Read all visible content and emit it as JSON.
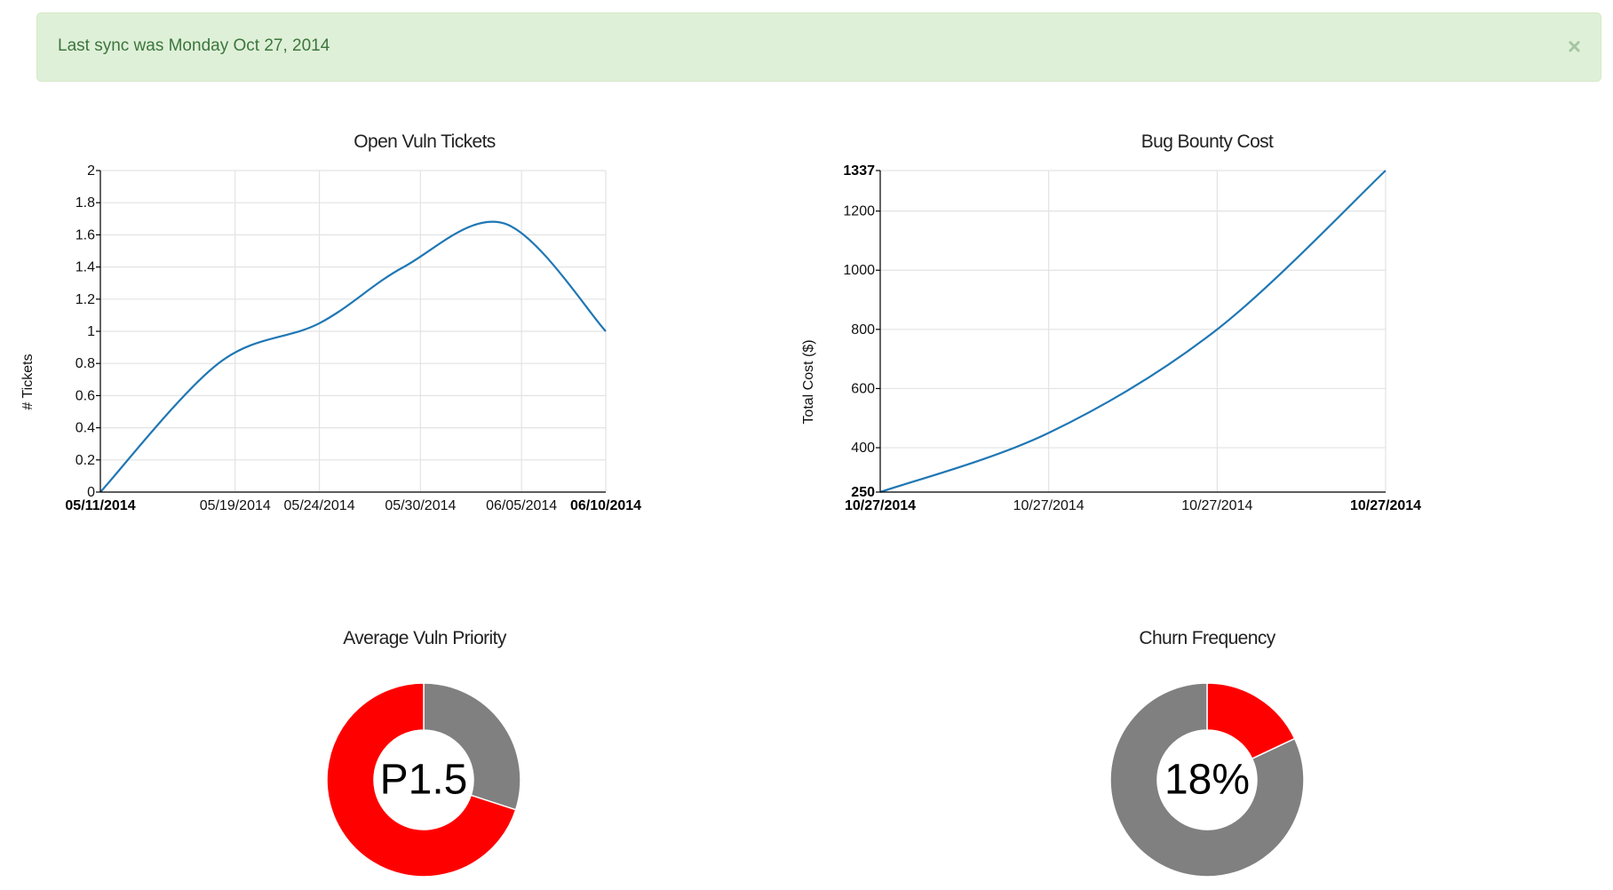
{
  "alert": {
    "message": "Last sync was Monday Oct 27, 2014",
    "close": "×"
  },
  "colors": {
    "line": "#1f77b4",
    "donut_primary": "#ff0000",
    "donut_secondary": "#808080"
  },
  "chart_data": [
    {
      "type": "line",
      "title": "Open Vuln Tickets",
      "xlabel": "",
      "ylabel": "# Tickets",
      "x": [
        "05/11/2014",
        "05/19/2014",
        "05/24/2014",
        "05/30/2014",
        "06/05/2014",
        "06/10/2014"
      ],
      "x_ticks": [
        "05/11/2014",
        "05/19/2014",
        "05/24/2014",
        "05/30/2014",
        "06/05/2014",
        "06/10/2014"
      ],
      "x_day_offsets": [
        0,
        8,
        13,
        19,
        25,
        30
      ],
      "series": [
        {
          "name": "Open Vuln Tickets",
          "x_day_offsets": [
            0,
            7,
            13,
            18,
            24,
            30
          ],
          "values": [
            0,
            0.8,
            1.05,
            1.4,
            1.67,
            1.0
          ]
        }
      ],
      "ylim": [
        0,
        2
      ],
      "y_ticks": [
        "0",
        "0.2",
        "0.4",
        "0.6",
        "0.8",
        "1",
        "1.2",
        "1.4",
        "1.6",
        "1.8",
        "2"
      ],
      "grid": true
    },
    {
      "type": "line",
      "title": "Bug Bounty Cost",
      "xlabel": "",
      "ylabel": "Total Cost ($)",
      "x_ticks": [
        "10/27/2014",
        "10/27/2014",
        "10/27/2014",
        "10/27/2014"
      ],
      "series": [
        {
          "name": "Bug Bounty Cost",
          "values": [
            250,
            450,
            800,
            1337
          ]
        }
      ],
      "ylim": [
        250,
        1337
      ],
      "y_ticks": [
        "250",
        "400",
        "600",
        "800",
        "1000",
        "1200",
        "1337"
      ],
      "grid": true
    },
    {
      "type": "pie",
      "title": "Average Vuln Priority",
      "center_label": "P1.5",
      "slices": [
        {
          "name": "secondary",
          "value": 30
        },
        {
          "name": "primary",
          "value": 70
        }
      ]
    },
    {
      "type": "pie",
      "title": "Churn Frequency",
      "center_label": "18%",
      "slices": [
        {
          "name": "primary",
          "value": 18
        },
        {
          "name": "secondary",
          "value": 82
        }
      ]
    }
  ]
}
